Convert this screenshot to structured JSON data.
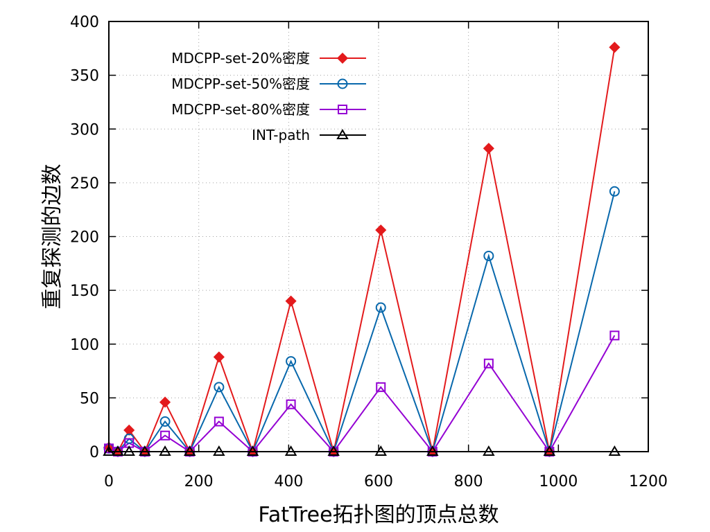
{
  "chart_data": {
    "type": "line",
    "xlabel": "FatTree拓扑图的顶点总数",
    "ylabel": "重复探测的边数",
    "xlim": [
      0,
      1200
    ],
    "ylim": [
      0,
      400
    ],
    "x_ticks": [
      0,
      200,
      400,
      600,
      800,
      1000,
      1200
    ],
    "y_ticks": [
      0,
      50,
      100,
      150,
      200,
      250,
      300,
      350,
      400
    ],
    "grid": true,
    "legend_position": "top-left",
    "x": [
      0,
      20,
      45,
      80,
      125,
      180,
      245,
      320,
      405,
      500,
      605,
      720,
      845,
      980,
      1125
    ],
    "series": [
      {
        "name": "MDCPP-set-20%密度",
        "color": "#e31a1c",
        "marker": "filled-diamond",
        "values": [
          4,
          0,
          20,
          0,
          46,
          0,
          88,
          0,
          140,
          0,
          206,
          0,
          282,
          0,
          376
        ]
      },
      {
        "name": "MDCPP-set-50%密度",
        "color": "#0868ac",
        "marker": "open-circle",
        "values": [
          3,
          0,
          12,
          0,
          28,
          0,
          60,
          0,
          84,
          0,
          134,
          0,
          182,
          0,
          242
        ]
      },
      {
        "name": "MDCPP-set-80%密度",
        "color": "#9400d3",
        "marker": "open-square",
        "values": [
          3,
          0,
          8,
          0,
          15,
          0,
          28,
          0,
          44,
          0,
          60,
          0,
          82,
          0,
          108
        ]
      },
      {
        "name": "INT-path",
        "color": "#000000",
        "marker": "open-triangle",
        "values": [
          0,
          0,
          0,
          0,
          0,
          0,
          0,
          0,
          0,
          0,
          0,
          0,
          0,
          0,
          0
        ]
      }
    ]
  }
}
